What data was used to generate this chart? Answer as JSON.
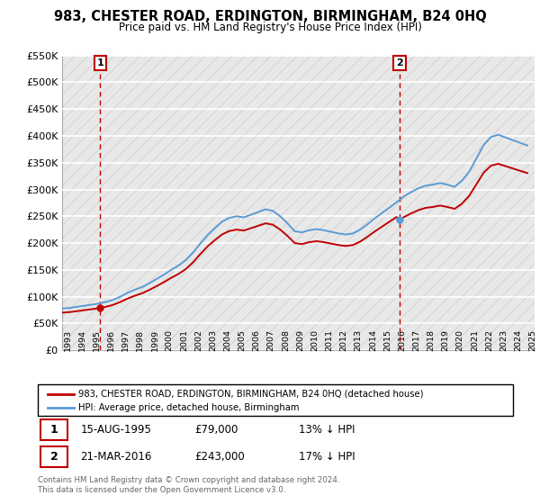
{
  "title": "983, CHESTER ROAD, ERDINGTON, BIRMINGHAM, B24 0HQ",
  "subtitle": "Price paid vs. HM Land Registry's House Price Index (HPI)",
  "legend_label1": "983, CHESTER ROAD, ERDINGTON, BIRMINGHAM, B24 0HQ (detached house)",
  "legend_label2": "HPI: Average price, detached house, Birmingham",
  "point1_date": "15-AUG-1995",
  "point1_value": "£79,000",
  "point1_hpi": "13% ↓ HPI",
  "point2_date": "21-MAR-2016",
  "point2_value": "£243,000",
  "point2_hpi": "17% ↓ HPI",
  "footer": "Contains HM Land Registry data © Crown copyright and database right 2024.\nThis data is licensed under the Open Government Licence v3.0.",
  "hpi_color": "#5b9bd5",
  "price_color": "#c00000",
  "dashed_color": "#c00000",
  "ylim": [
    0,
    550000
  ],
  "yticks": [
    0,
    50000,
    100000,
    150000,
    200000,
    250000,
    300000,
    350000,
    400000,
    450000,
    500000,
    550000
  ],
  "xlim_start": 1993.0,
  "xlim_end": 2025.5,
  "background_color": "#e8e8e8",
  "grid_color": "#ffffff",
  "hatch_color": "#d0d0d0",
  "point1_x": 1995.62,
  "point1_y": 79000,
  "point2_x": 2016.22,
  "point2_y": 243000
}
